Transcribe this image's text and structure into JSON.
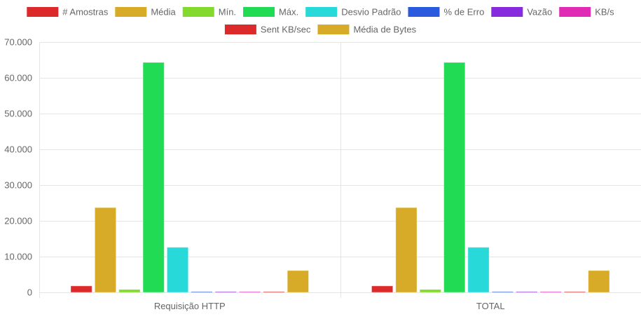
{
  "chart_data": {
    "type": "bar",
    "categories": [
      "Requisição HTTP",
      "TOTAL"
    ],
    "ylim": [
      0,
      70000
    ],
    "yticks": [
      "0",
      "10.000",
      "20.000",
      "30.000",
      "40.000",
      "50.000",
      "60.000",
      "70.000"
    ],
    "ytick_values": [
      0,
      10000,
      20000,
      30000,
      40000,
      50000,
      60000,
      70000
    ],
    "grid": true,
    "legend_position": "top",
    "series": [
      {
        "name": "# Amostras",
        "color": "#dc2a2a",
        "values": [
          1800,
          1800
        ]
      },
      {
        "name": "Média",
        "color": "#d7ab28",
        "values": [
          23700,
          23700
        ]
      },
      {
        "name": "Mín.",
        "color": "#84d92d",
        "values": [
          800,
          800
        ]
      },
      {
        "name": "Máx.",
        "color": "#22db55",
        "values": [
          64300,
          64300
        ]
      },
      {
        "name": "Desvio Padrão",
        "color": "#28d9d9",
        "values": [
          12600,
          12600
        ]
      },
      {
        "name": "% de Erro",
        "color": "#2a5ade",
        "values": [
          100,
          100
        ]
      },
      {
        "name": "Vazão",
        "color": "#862bde",
        "values": [
          100,
          100
        ]
      },
      {
        "name": "KB/s",
        "color": "#e02cb5",
        "values": [
          100,
          100
        ]
      },
      {
        "name": "Sent KB/sec",
        "color": "#dc2a2a",
        "values": [
          100,
          100
        ]
      },
      {
        "name": "Média de Bytes",
        "color": "#d7ab28",
        "values": [
          6100,
          6100
        ]
      }
    ]
  }
}
